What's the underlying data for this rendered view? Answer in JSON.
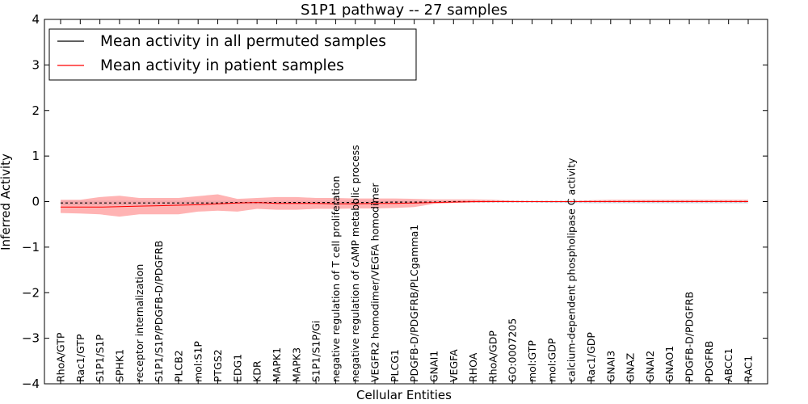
{
  "chart_data": {
    "type": "line",
    "title": "S1P1 pathway -- 27 samples",
    "xlabel": "Cellular Entities",
    "ylabel": "Inferred Activity",
    "ylim": [
      -4,
      4
    ],
    "yticks": [
      -4,
      -3,
      -2,
      -1,
      0,
      1,
      2,
      3,
      4
    ],
    "ytick_labels": [
      "−4",
      "−3",
      "−2",
      "−1",
      "0",
      "1",
      "2",
      "3",
      "4"
    ],
    "legend_position": "upper-left",
    "categories": [
      "RhoA/GTP",
      "Rac1/GTP",
      "S1P1/S1P",
      "SPHK1",
      "receptor internalization",
      "S1P1/S1P/PDGFB-D/PDGFRB",
      "PLCB2",
      "mol:S1P",
      "PTGS2",
      "EDG1",
      "KDR",
      "MAPK1",
      "MAPK3",
      "S1P1/S1P/Gi",
      "negative regulation of T cell proliferation",
      "negative regulation of cAMP metabolic process",
      "VEGFR2 homodimer/VEGFA homodimer",
      "PLCG1",
      "PDGFB-D/PDGFRB/PLCgamma1",
      "GNAI1",
      "VEGFA",
      "RHOA",
      "RhoA/GDP",
      "GO:0007205",
      "mol:GTP",
      "mol:GDP",
      "calcium-dependent phospholipase C activity",
      "Rac1/GDP",
      "GNAI3",
      "GNAZ",
      "GNAI2",
      "GNAO1",
      "PDGFB-D/PDGFRB",
      "PDGFRB",
      "ABCC1",
      "RAC1"
    ],
    "series": [
      {
        "name": "Mean activity in all permuted samples",
        "color": "#000000",
        "style": "dashed",
        "band_color": "#b0b0c8",
        "values": [
          -0.03,
          -0.03,
          -0.03,
          -0.03,
          -0.03,
          -0.03,
          -0.03,
          -0.03,
          -0.03,
          -0.02,
          -0.02,
          -0.02,
          -0.02,
          -0.02,
          -0.02,
          -0.02,
          -0.02,
          -0.01,
          -0.01,
          -0.01,
          0.0,
          0.0,
          0.0,
          0.0,
          0.0,
          0.0,
          0.0,
          0.0,
          0.0,
          0.0,
          0.0,
          0.0,
          0.0,
          0.0,
          0.0,
          0.0
        ],
        "lower": [
          -0.08,
          -0.08,
          -0.08,
          -0.08,
          -0.08,
          -0.08,
          -0.08,
          -0.08,
          -0.07,
          -0.06,
          -0.06,
          -0.06,
          -0.06,
          -0.06,
          -0.05,
          -0.05,
          -0.05,
          -0.04,
          -0.04,
          -0.03,
          -0.02,
          -0.02,
          -0.02,
          -0.02,
          -0.02,
          -0.03,
          -0.03,
          -0.04,
          -0.04,
          -0.04,
          -0.04,
          -0.04,
          -0.04,
          -0.04,
          -0.04,
          -0.04
        ],
        "upper": [
          0.02,
          0.02,
          0.02,
          0.02,
          0.02,
          0.02,
          0.02,
          0.02,
          0.02,
          0.02,
          0.02,
          0.02,
          0.02,
          0.02,
          0.02,
          0.02,
          0.02,
          0.02,
          0.02,
          0.01,
          0.01,
          0.01,
          0.01,
          0.01,
          0.01,
          0.01,
          0.01,
          0.01,
          0.01,
          0.01,
          0.01,
          0.01,
          0.01,
          0.01,
          0.01,
          0.01
        ]
      },
      {
        "name": "Mean activity in patient samples",
        "color": "#ff0000",
        "style": "solid",
        "band_color": "#ff8080",
        "values": [
          -0.12,
          -0.12,
          -0.12,
          -0.11,
          -0.1,
          -0.09,
          -0.08,
          -0.07,
          -0.05,
          -0.03,
          -0.02,
          -0.04,
          -0.04,
          -0.04,
          -0.05,
          -0.05,
          -0.04,
          -0.04,
          -0.03,
          -0.02,
          -0.01,
          0.0,
          0.0,
          0.0,
          0.0,
          0.0,
          0.0,
          0.0,
          0.0,
          0.0,
          0.0,
          0.0,
          0.0,
          0.0,
          0.0,
          0.0
        ],
        "lower": [
          -0.25,
          -0.26,
          -0.28,
          -0.33,
          -0.28,
          -0.28,
          -0.28,
          -0.22,
          -0.2,
          -0.22,
          -0.16,
          -0.18,
          -0.18,
          -0.16,
          -0.16,
          -0.15,
          -0.15,
          -0.14,
          -0.12,
          -0.05,
          -0.03,
          -0.02,
          -0.01,
          0.0,
          0.0,
          0.0,
          0.0,
          0.0,
          0.0,
          0.0,
          0.0,
          0.0,
          0.0,
          0.0,
          0.0,
          0.0
        ],
        "upper": [
          0.04,
          0.04,
          0.1,
          0.13,
          0.08,
          0.08,
          0.08,
          0.12,
          0.16,
          0.06,
          0.08,
          0.1,
          0.1,
          0.08,
          0.08,
          0.07,
          0.07,
          0.07,
          0.06,
          0.05,
          0.05,
          0.05,
          0.04,
          0.02,
          0.01,
          0.01,
          0.01,
          0.03,
          0.04,
          0.04,
          0.04,
          0.04,
          0.04,
          0.04,
          0.04,
          0.04
        ]
      }
    ]
  }
}
